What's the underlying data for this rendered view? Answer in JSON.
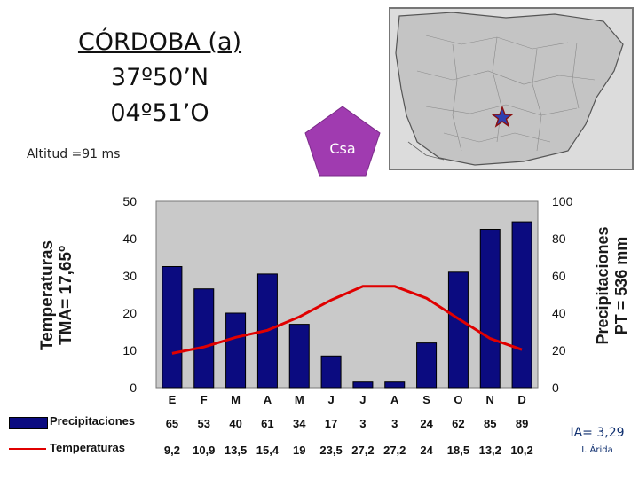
{
  "header": {
    "title_line1": "CÓRDOBA (a)",
    "title_line2": "37º50’N",
    "title_line3": "04º51’O",
    "altitude": "Altitud =91 ms",
    "climate_type": "Csa"
  },
  "colors": {
    "bars": "#0b0b80",
    "line": "#e00000",
    "badge": "#a03bb0",
    "plot_bg": "#c9c9c9"
  },
  "map": {
    "marker_icon": "star-icon"
  },
  "axes": {
    "left_label_line1": "Temperaturas",
    "left_label_line2": "TMA= 17,65º",
    "right_label_line1": "Precipitaciones",
    "right_label_line2": "PT = 536 mm"
  },
  "chart_data": {
    "type": "bar",
    "categories": [
      "E",
      "F",
      "M",
      "A",
      "M",
      "J",
      "J",
      "A",
      "S",
      "O",
      "N",
      "D"
    ],
    "series": [
      {
        "name": "Precipitaciones",
        "type": "bar",
        "axis": "right",
        "values": [
          65,
          53,
          40,
          61,
          34,
          17,
          3,
          3,
          24,
          62,
          85,
          89
        ],
        "labels": [
          "65",
          "53",
          "40",
          "61",
          "34",
          "17",
          "3",
          "3",
          "24",
          "62",
          "85",
          "89"
        ]
      },
      {
        "name": "Temperaturas",
        "type": "line",
        "axis": "left",
        "values": [
          9.2,
          10.9,
          13.5,
          15.4,
          19,
          23.5,
          27.2,
          27.2,
          24,
          18.5,
          13.2,
          10.2
        ],
        "labels": [
          "9,2",
          "10,9",
          "13,5",
          "15,4",
          "19",
          "23,5",
          "27,2",
          "27,2",
          "24",
          "18,5",
          "13,2",
          "10,2"
        ]
      }
    ],
    "ylim_left": [
      0,
      50
    ],
    "ylim_right": [
      0,
      100
    ],
    "left_ticks": [
      "0",
      "10",
      "20",
      "30",
      "40",
      "50"
    ],
    "right_ticks": [
      "0",
      "20",
      "40",
      "60",
      "80",
      "100"
    ],
    "grid": false,
    "legend": "bottom-left"
  },
  "aridity": {
    "index": "IA= 3,29",
    "class": "I. Árida"
  }
}
